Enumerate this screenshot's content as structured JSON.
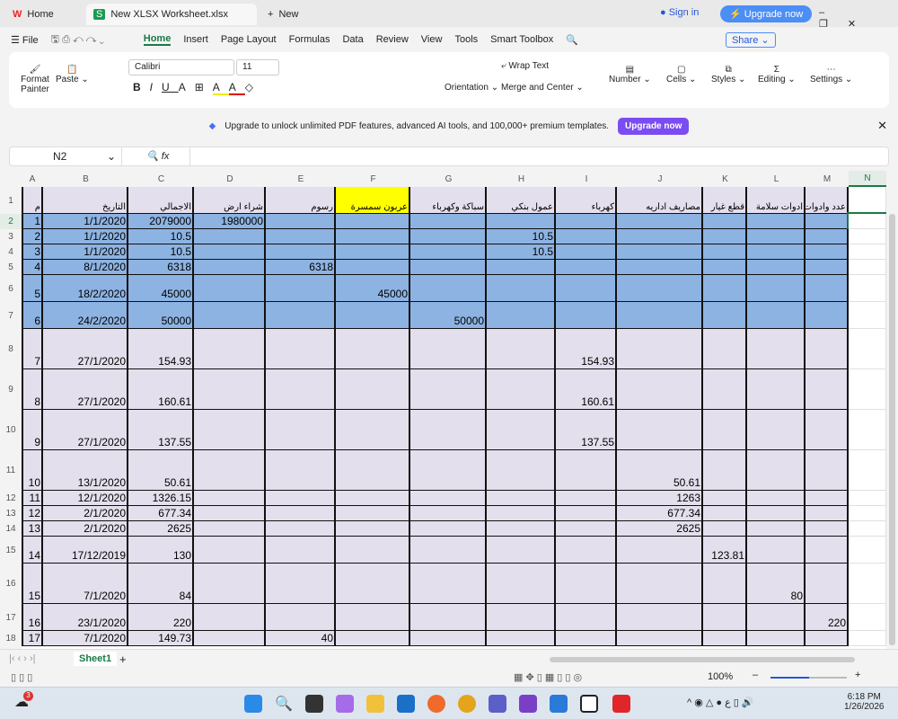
{
  "tabs": [
    {
      "label": "Home"
    },
    {
      "label": "New XLSX Worksheet.xlsx"
    },
    {
      "label": "New"
    }
  ],
  "window": {
    "signin": "Sign in",
    "upgrade": "Upgrade now"
  },
  "menu": {
    "file": "File",
    "items": [
      "Home",
      "Insert",
      "Page Layout",
      "Formulas",
      "Data",
      "Review",
      "View",
      "Tools",
      "Smart Toolbox"
    ],
    "share": "Share"
  },
  "ribbon": {
    "format_painter": "Format Painter",
    "paste": "Paste",
    "font": "Calibri",
    "size": "11",
    "wrap": "Wrap Text",
    "orientation": "Orientation",
    "merge": "Merge and Center",
    "number": "Number",
    "cells": "Cells",
    "styles": "Styles",
    "editing": "Editing",
    "settings": "Settings"
  },
  "banner": {
    "text": "Upgrade to unlock unlimited PDF features, advanced AI tools, and 100,000+ premium templates.",
    "button": "Upgrade now"
  },
  "formula": {
    "cell_ref": "N2",
    "fx": "fx",
    "value": ""
  },
  "columns": [
    "A",
    "B",
    "C",
    "D",
    "E",
    "F",
    "G",
    "H",
    "I",
    "J",
    "K",
    "L",
    "M",
    "N"
  ],
  "headers": [
    "م",
    "التاريخ",
    "الاجمالي",
    "شراء ارض",
    "رسوم",
    "عربون سمسرة",
    "سباكة وكهرباء",
    "عمول بنكي",
    "كهرباء",
    "مصاريف اداريه",
    "قطع غيار",
    "ادوات سلامة",
    "عدد وادوات",
    ""
  ],
  "rows": [
    [
      "1",
      "1/1/2020",
      "2079000",
      "1980000",
      "",
      "",
      "",
      "",
      "",
      "",
      "",
      "",
      ""
    ],
    [
      "2",
      "1/1/2020",
      "10.5",
      "",
      "",
      "",
      "",
      "10.5",
      "",
      "",
      "",
      "",
      ""
    ],
    [
      "3",
      "1/1/2020",
      "10.5",
      "",
      "",
      "",
      "",
      "10.5",
      "",
      "",
      "",
      "",
      ""
    ],
    [
      "4",
      "8/1/2020",
      "6318",
      "",
      "6318",
      "",
      "",
      "",
      "",
      "",
      "",
      "",
      ""
    ],
    [
      "5",
      "18/2/2020",
      "45000",
      "",
      "",
      "45000",
      "",
      "",
      "",
      "",
      "",
      "",
      ""
    ],
    [
      "6",
      "24/2/2020",
      "50000",
      "",
      "",
      "",
      "50000",
      "",
      "",
      "",
      "",
      "",
      ""
    ],
    [
      "7",
      "27/1/2020",
      "154.93",
      "",
      "",
      "",
      "",
      "",
      "154.93",
      "",
      "",
      "",
      ""
    ],
    [
      "8",
      "27/1/2020",
      "160.61",
      "",
      "",
      "",
      "",
      "",
      "160.61",
      "",
      "",
      "",
      ""
    ],
    [
      "9",
      "27/1/2020",
      "137.55",
      "",
      "",
      "",
      "",
      "",
      "137.55",
      "",
      "",
      "",
      ""
    ],
    [
      "10",
      "13/1/2020",
      "50.61",
      "",
      "",
      "",
      "",
      "",
      "",
      "50.61",
      "",
      "",
      ""
    ],
    [
      "11",
      "12/1/2020",
      "1326.15",
      "",
      "",
      "",
      "",
      "",
      "",
      "1263",
      "",
      "",
      ""
    ],
    [
      "12",
      "2/1/2020",
      "677.34",
      "",
      "",
      "",
      "",
      "",
      "",
      "677.34",
      "",
      "",
      ""
    ],
    [
      "13",
      "2/1/2020",
      "2625",
      "",
      "",
      "",
      "",
      "",
      "",
      "2625",
      "",
      "",
      ""
    ],
    [
      "14",
      "17/12/2019",
      "130",
      "",
      "",
      "",
      "",
      "",
      "",
      "",
      "123.81",
      "",
      ""
    ],
    [
      "15",
      "7/1/2020",
      "84",
      "",
      "",
      "",
      "",
      "",
      "",
      "",
      "",
      "80",
      ""
    ],
    [
      "16",
      "23/1/2020",
      "220",
      "",
      "",
      "",
      "",
      "",
      "",
      "",
      "",
      "",
      "220"
    ],
    [
      "17",
      "7/1/2020",
      "149.73",
      "",
      "40",
      "",
      "",
      "",
      "",
      "",
      "",
      "",
      ""
    ]
  ],
  "colors": {
    "blue_fill": "#8db3e2",
    "lavender_fill": "#e4dfec",
    "yellow": "#ffff00",
    "accent": "#1a7a45"
  },
  "sheet": {
    "name": "Sheet1"
  },
  "status": {
    "zoom": "100%"
  },
  "clock": {
    "time": "6:18 PM",
    "date": "1/26/2026",
    "badge": "3"
  }
}
